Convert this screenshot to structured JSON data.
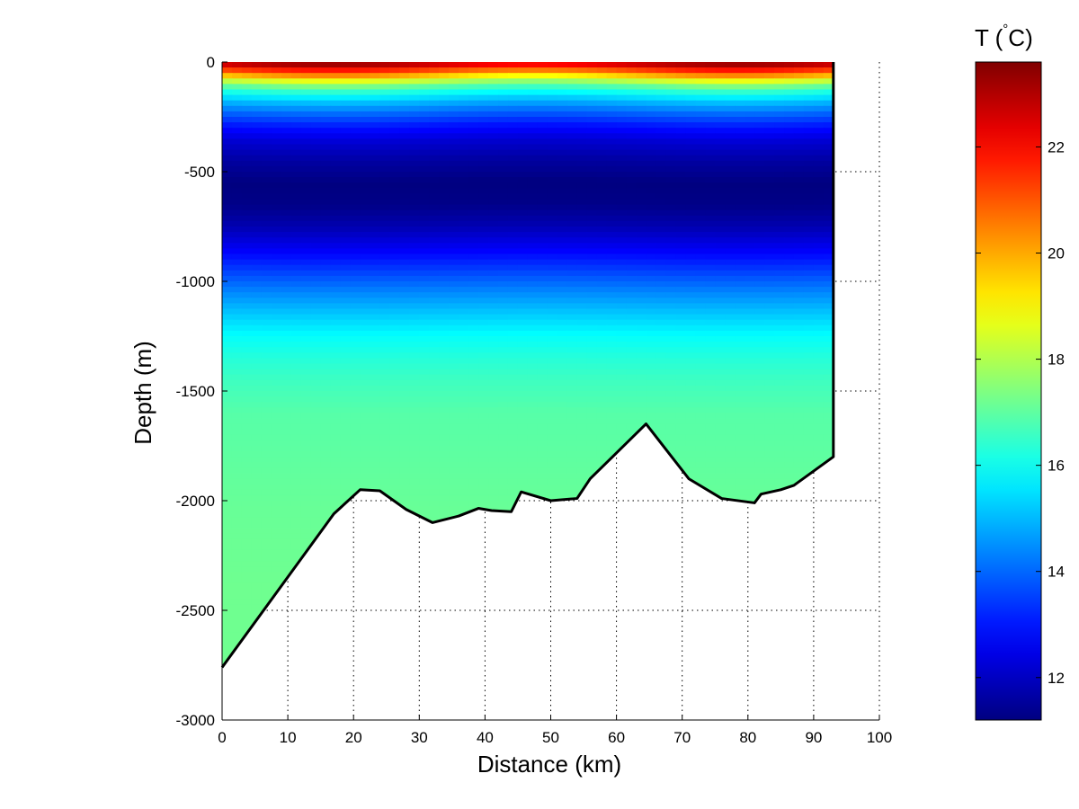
{
  "chart_data": {
    "type": "heatmap",
    "title": "",
    "xlabel": "Distance (km)",
    "ylabel": "Depth (m)",
    "xlim": [
      0,
      100
    ],
    "ylim": [
      -3000,
      0
    ],
    "x_ticks": [
      "0",
      "10",
      "20",
      "30",
      "40",
      "50",
      "60",
      "70",
      "80",
      "90",
      "100"
    ],
    "y_ticks": [
      "0",
      "-500",
      "-1000",
      "-1500",
      "-2000",
      "-2500",
      "-3000"
    ],
    "grid": true,
    "colormap": "jet",
    "colorbar": {
      "title": "T (°C)",
      "title_parts": {
        "main": "T (",
        "unit_degree": "°",
        "unit": "C)"
      },
      "range": [
        11.2,
        23.6
      ],
      "ticks": [
        "12",
        "14",
        "16",
        "18",
        "20",
        "22"
      ],
      "placement": "right"
    },
    "section_end_distance_km": 93,
    "temperature_profile": {
      "depth_m": [
        0,
        -20,
        -50,
        -80,
        -110,
        -140,
        -180,
        -230,
        -290,
        -360,
        -450,
        -550,
        -650,
        -750,
        -850,
        -950,
        -1050,
        -1150,
        -1250,
        -1350,
        -1450,
        -1600,
        -1800,
        -2000,
        -2400,
        -2800
      ],
      "temperature_c": [
        23.2,
        22.2,
        20.5,
        18.5,
        17.0,
        16.0,
        15.0,
        14.0,
        13.0,
        12.2,
        11.6,
        11.2,
        11.3,
        11.8,
        12.6,
        13.5,
        14.4,
        15.2,
        15.9,
        16.3,
        16.6,
        16.9,
        17.0,
        17.1,
        17.2,
        17.2
      ]
    },
    "bottom_profile": {
      "distance_km": [
        0,
        17,
        21,
        24,
        28,
        32,
        36,
        39,
        41,
        44,
        45.5,
        50,
        54,
        56,
        64.5,
        71,
        76,
        81,
        82,
        85,
        87,
        93,
        93
      ],
      "depth_m": [
        -2760,
        -2060,
        -1950,
        -1955,
        -2040,
        -2100,
        -2070,
        -2035,
        -2045,
        -2050,
        -1960,
        -2000,
        -1990,
        -1900,
        -1650,
        -1900,
        -1990,
        -2010,
        -1970,
        -1950,
        -1930,
        -1800,
        0
      ]
    }
  }
}
